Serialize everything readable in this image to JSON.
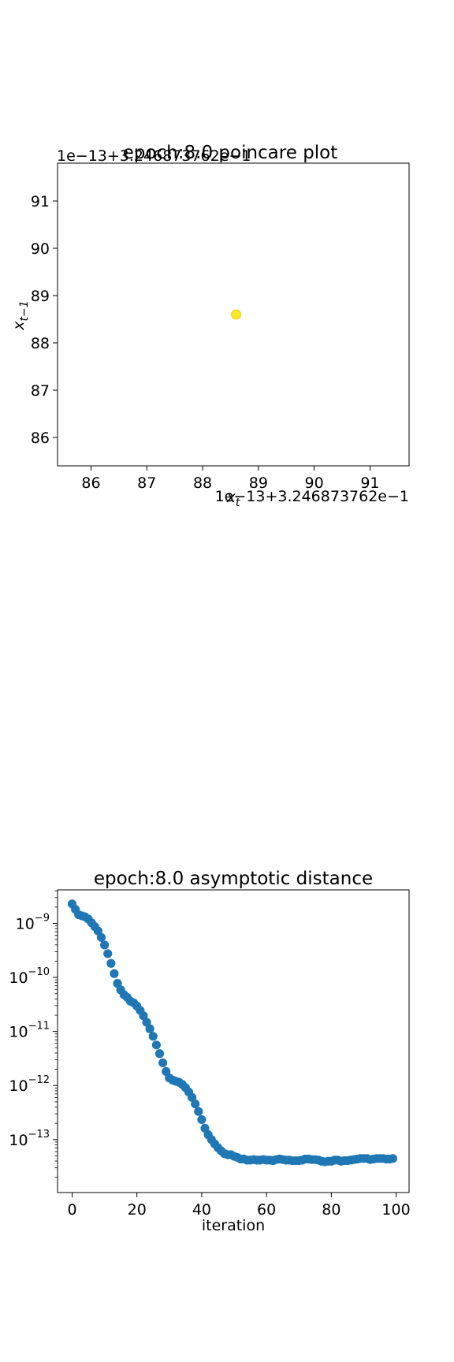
{
  "chart_data": [
    {
      "type": "scatter",
      "title": "epoch:8.0 poincare plot",
      "xlabel": "x_t",
      "ylabel": "x_{t-1}",
      "x_offset_text": "1e−13+3.246873762e−1",
      "y_offset_text": "1e−13+3.246873762e−1",
      "xlim": [
        85.4,
        91.7
      ],
      "ylim": [
        85.4,
        91.8
      ],
      "xticks": [
        86,
        87,
        88,
        89,
        90,
        91
      ],
      "yticks": [
        86,
        87,
        88,
        89,
        90,
        91
      ],
      "xtick_labels": [
        "86",
        "87",
        "88",
        "89",
        "90",
        "91"
      ],
      "ytick_labels": [
        "86",
        "87",
        "88",
        "89",
        "90",
        "91"
      ],
      "points": [
        {
          "x": 88.6,
          "y": 88.6
        }
      ],
      "point_color": "#fde725",
      "grid": false
    },
    {
      "type": "scatter",
      "title": "epoch:8.0 asymptotic distance",
      "xlabel": "iteration",
      "ylabel": "",
      "yscale": "log",
      "xlim": [
        -4.5,
        104
      ],
      "ylim_log10": [
        -13.98,
        -8.38
      ],
      "xticks": [
        0,
        20,
        40,
        60,
        80,
        100
      ],
      "xtick_labels": [
        "0",
        "20",
        "40",
        "60",
        "80",
        "100"
      ],
      "yticks_exp": [
        -9,
        -10,
        -11,
        -12,
        -13
      ],
      "ytick_base": "10",
      "ytick_exps": [
        "−9",
        "−10",
        "−11",
        "−12",
        "−13"
      ],
      "point_color": "#1f77b4",
      "grid": false,
      "x": [
        0,
        1,
        2,
        3,
        4,
        5,
        6,
        7,
        8,
        9,
        10,
        11,
        12,
        13,
        14,
        15,
        16,
        17,
        18,
        19,
        20,
        21,
        22,
        23,
        24,
        25,
        26,
        27,
        28,
        29,
        30,
        31,
        32,
        33,
        34,
        35,
        36,
        37,
        38,
        39,
        40,
        41,
        42,
        43,
        44,
        45,
        46,
        47,
        48,
        49,
        50,
        51,
        52,
        53,
        54,
        55,
        56,
        57,
        58,
        59,
        60,
        61,
        62,
        63,
        64,
        65,
        66,
        67,
        68,
        69,
        70,
        71,
        72,
        73,
        74,
        75,
        76,
        77,
        78,
        79,
        80,
        81,
        82,
        83,
        84,
        85,
        86,
        87,
        88,
        89,
        90,
        91,
        92,
        93,
        94,
        95,
        96,
        97,
        98,
        99
      ],
      "y_log10": [
        -8.64,
        -8.74,
        -8.84,
        -8.86,
        -8.88,
        -8.92,
        -8.99,
        -9.06,
        -9.14,
        -9.26,
        -9.4,
        -9.56,
        -9.74,
        -9.93,
        -10.11,
        -10.23,
        -10.32,
        -10.37,
        -10.44,
        -10.47,
        -10.53,
        -10.61,
        -10.71,
        -10.83,
        -10.95,
        -11.09,
        -11.25,
        -11.41,
        -11.58,
        -11.74,
        -11.86,
        -11.9,
        -11.92,
        -11.94,
        -11.98,
        -12.04,
        -12.12,
        -12.22,
        -12.34,
        -12.48,
        -12.63,
        -12.79,
        -12.91,
        -13.0,
        -13.08,
        -13.15,
        -13.21,
        -13.26,
        -13.28,
        -13.28,
        -13.31,
        -13.33,
        -13.36,
        -13.36,
        -13.38,
        -13.38,
        -13.37,
        -13.38,
        -13.38,
        -13.37,
        -13.38,
        -13.38,
        -13.39,
        -13.37,
        -13.36,
        -13.37,
        -13.38,
        -13.38,
        -13.39,
        -13.39,
        -13.39,
        -13.38,
        -13.36,
        -13.36,
        -13.37,
        -13.37,
        -13.38,
        -13.4,
        -13.41,
        -13.4,
        -13.4,
        -13.38,
        -13.38,
        -13.4,
        -13.39,
        -13.39,
        -13.38,
        -13.37,
        -13.36,
        -13.35,
        -13.35,
        -13.35,
        -13.37,
        -13.36,
        -13.35,
        -13.35,
        -13.35,
        -13.36,
        -13.36,
        -13.35
      ]
    }
  ]
}
